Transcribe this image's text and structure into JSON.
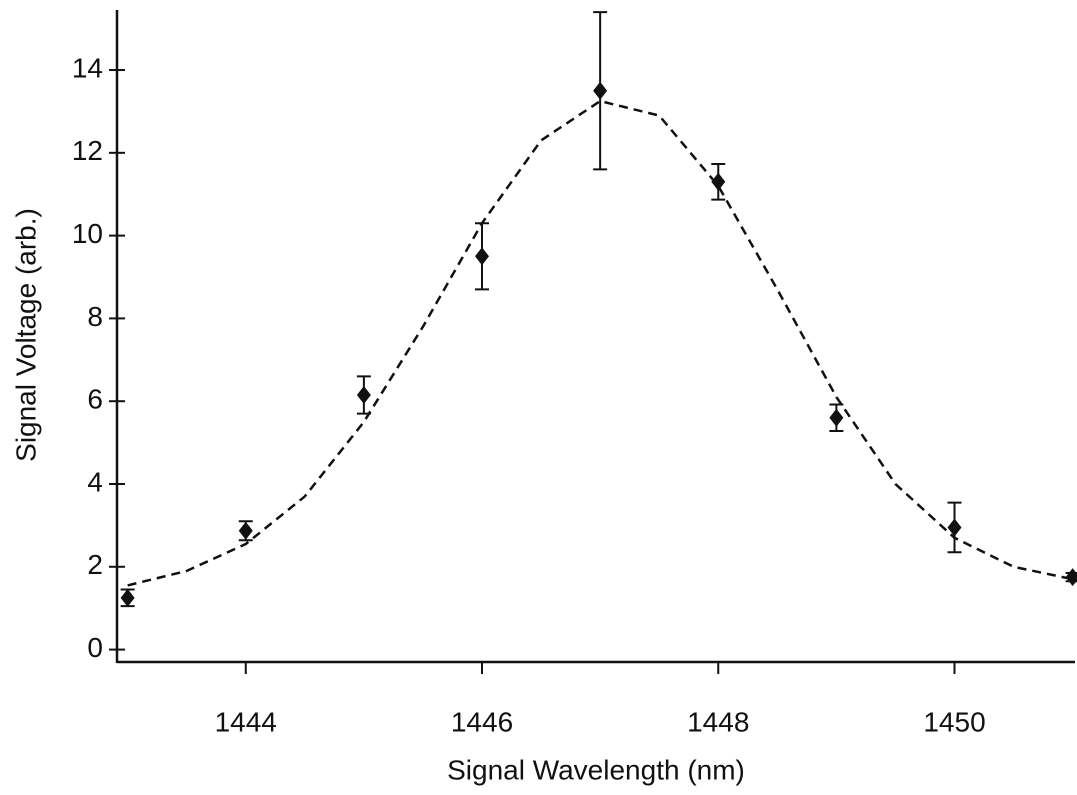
{
  "chart_data": {
    "type": "scatter",
    "x_label": "Signal Wavelength (nm)",
    "y_label": "Signal Voltage (arb.)",
    "xlim": [
      1442.91,
      1451.02
    ],
    "ylim": [
      -0.3,
      15.45
    ],
    "xticks": [
      1444,
      1446,
      1448,
      1450
    ],
    "yticks": [
      0,
      2,
      4,
      6,
      8,
      10,
      12,
      14
    ],
    "series": [
      {
        "color": "#111111",
        "marker": "diamond",
        "x": [
          1443,
          1444,
          1445,
          1446,
          1447,
          1448,
          1449,
          1450,
          1451
        ],
        "values": [
          1.25,
          2.87,
          6.15,
          9.5,
          13.5,
          11.3,
          5.6,
          2.95,
          1.75
        ],
        "errors": [
          0.2,
          0.23,
          0.45,
          0.8,
          1.9,
          0.43,
          0.32,
          0.6,
          0.1
        ]
      },
      {
        "color": "#111111",
        "style": "dashed",
        "x": [
          1443,
          1443.5,
          1444,
          1444.5,
          1445,
          1445.5,
          1446,
          1446.5,
          1447,
          1447.5,
          1448,
          1448.5,
          1449,
          1449.5,
          1450,
          1450.5,
          1451
        ],
        "values": [
          1.55,
          1.9,
          2.55,
          3.7,
          5.5,
          7.8,
          10.3,
          12.3,
          13.25,
          12.9,
          11.2,
          8.7,
          6.1,
          4.0,
          2.7,
          2.0,
          1.7
        ]
      }
    ]
  }
}
